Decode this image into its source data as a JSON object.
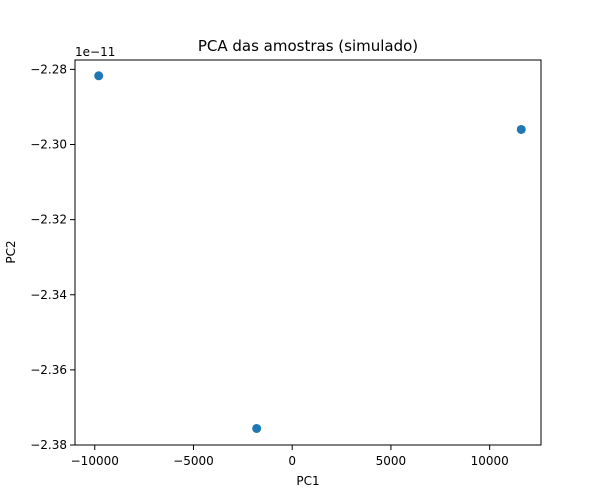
{
  "chart_data": {
    "type": "scatter",
    "title": "PCA das amostras (simulado)",
    "xlabel": "PC1",
    "ylabel": "PC2",
    "y_offset_label": "1e−11",
    "xlim": [
      -11000,
      12600
    ],
    "ylim": [
      -2.38,
      -2.2775
    ],
    "x_ticks": [
      {
        "value": -10000,
        "label": "−10000"
      },
      {
        "value": -5000,
        "label": "−5000"
      },
      {
        "value": 0,
        "label": "0"
      },
      {
        "value": 5000,
        "label": "5000"
      },
      {
        "value": 10000,
        "label": "10000"
      }
    ],
    "y_ticks": [
      {
        "value": -2.28,
        "label": "−2.28"
      },
      {
        "value": -2.3,
        "label": "−2.30"
      },
      {
        "value": -2.32,
        "label": "−2.32"
      },
      {
        "value": -2.34,
        "label": "−2.34"
      },
      {
        "value": -2.36,
        "label": "−2.36"
      },
      {
        "value": -2.38,
        "label": "−2.38"
      }
    ],
    "grid": false,
    "legend": "none",
    "series": [
      {
        "color": "#1f77b4",
        "points": [
          {
            "x": -9800,
            "y": -2.2817
          },
          {
            "x": -1800,
            "y": -2.3756
          },
          {
            "x": 11600,
            "y": -2.296
          }
        ]
      }
    ]
  }
}
